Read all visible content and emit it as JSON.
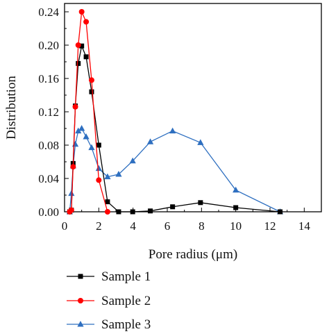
{
  "chart_data": {
    "type": "line",
    "title": "",
    "xlabel": "Pore radius (μm)",
    "ylabel": "Distribution",
    "xlim": [
      0,
      15
    ],
    "ylim": [
      0,
      0.25
    ],
    "x_ticks": [
      "0",
      "2",
      "4",
      "6",
      "8",
      "10",
      "12",
      "14"
    ],
    "y_ticks": [
      "0.00",
      "0.04",
      "0.08",
      "0.12",
      "0.16",
      "0.20",
      "0.24"
    ],
    "grid": false,
    "legend_position": "bottom",
    "series": [
      {
        "name": "Sample 1",
        "color": "#000000",
        "marker": "square",
        "x": [
          0.3,
          0.4,
          0.5,
          0.63,
          0.8,
          1.0,
          1.26,
          1.58,
          2.0,
          2.51,
          3.16,
          3.98,
          5.01,
          6.31,
          7.94,
          10.0,
          12.59
        ],
        "y": [
          0.0,
          0.002,
          0.058,
          0.127,
          0.178,
          0.199,
          0.186,
          0.144,
          0.08,
          0.012,
          0.0,
          0.0,
          0.001,
          0.006,
          0.011,
          0.005,
          0.0
        ]
      },
      {
        "name": "Sample 2",
        "color": "#ff0000",
        "marker": "circle",
        "x": [
          0.3,
          0.4,
          0.5,
          0.63,
          0.8,
          1.0,
          1.26,
          1.58,
          2.0,
          2.51
        ],
        "y": [
          0.0,
          0.002,
          0.054,
          0.126,
          0.2,
          0.24,
          0.228,
          0.158,
          0.038,
          0.0
        ]
      },
      {
        "name": "Sample 3",
        "color": "#2e6fc0",
        "marker": "triangle",
        "x": [
          0.3,
          0.4,
          0.5,
          0.63,
          0.8,
          1.0,
          1.26,
          1.58,
          2.0,
          2.51,
          3.16,
          3.98,
          5.01,
          6.31,
          7.94,
          10.0,
          12.59
        ],
        "y": [
          0.0,
          0.022,
          0.055,
          0.081,
          0.097,
          0.1,
          0.09,
          0.077,
          0.052,
          0.042,
          0.045,
          0.061,
          0.084,
          0.097,
          0.083,
          0.026,
          0.0
        ]
      }
    ]
  }
}
